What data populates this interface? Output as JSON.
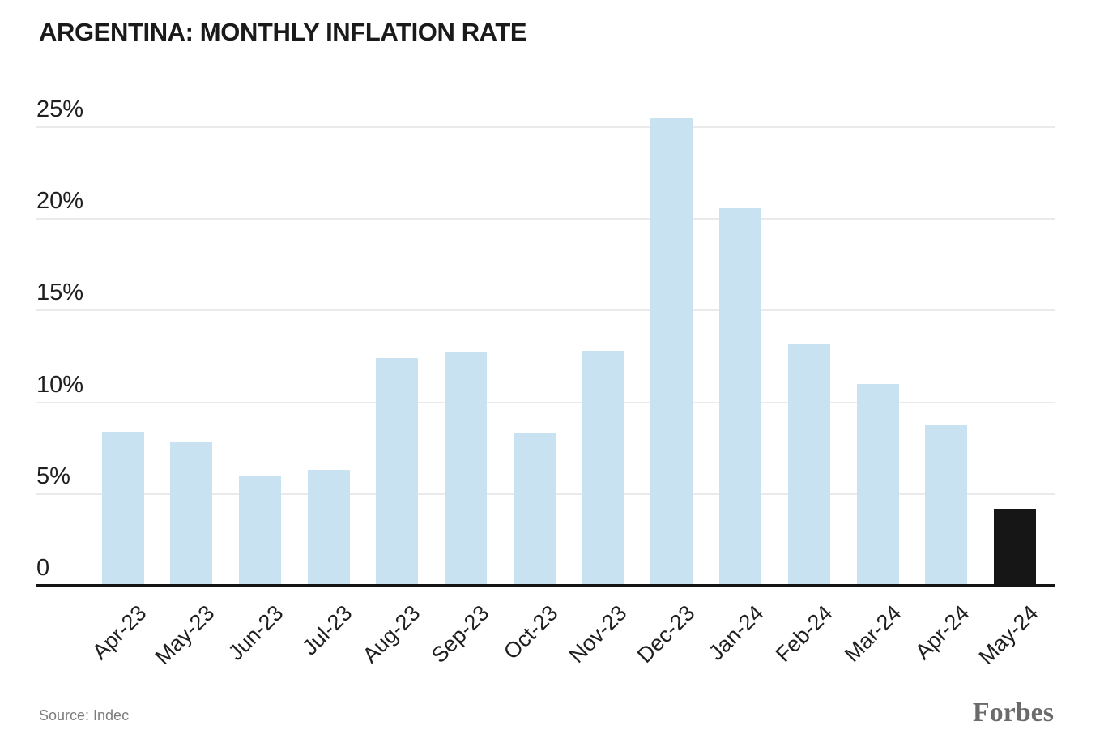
{
  "title": "ARGENTINA: MONTHLY INFLATION RATE",
  "source_note": "Source: Indec",
  "logo_text": "Forbes",
  "colors": {
    "bar": "#c9e2f2",
    "highlight_bar": "#161616",
    "grid_line": "#eaeaea",
    "axis_line": "#141414",
    "label_text": "#1f1f1f",
    "muted_text": "#7c7c7c",
    "logo_text": "#6b6b6b",
    "background": "#ffffff"
  },
  "chart_data": {
    "type": "bar",
    "title": "ARGENTINA: MONTHLY INFLATION RATE",
    "categories": [
      "Apr-23",
      "May-23",
      "Jun-23",
      "Jul-23",
      "Aug-23",
      "Sep-23",
      "Oct-23",
      "Nov-23",
      "Dec-23",
      "Jan-24",
      "Feb-24",
      "Mar-24",
      "Apr-24",
      "May-24"
    ],
    "values": [
      8.4,
      7.8,
      6.0,
      6.3,
      12.4,
      12.7,
      8.3,
      12.8,
      25.5,
      20.6,
      13.2,
      11.0,
      8.8,
      4.2
    ],
    "unit": "%",
    "bar_colors": [
      "#c9e2f2",
      "#c9e2f2",
      "#c9e2f2",
      "#c9e2f2",
      "#c9e2f2",
      "#c9e2f2",
      "#c9e2f2",
      "#c9e2f2",
      "#c9e2f2",
      "#c9e2f2",
      "#c9e2f2",
      "#c9e2f2",
      "#c9e2f2",
      "#161616"
    ],
    "highlight_index": 13,
    "ylim": [
      0,
      26.5
    ],
    "yticks": [
      {
        "value": 0,
        "label": "0"
      },
      {
        "value": 5,
        "label": "5%"
      },
      {
        "value": 10,
        "label": "10%"
      },
      {
        "value": 15,
        "label": "15%"
      },
      {
        "value": 20,
        "label": "20%"
      },
      {
        "value": 25,
        "label": "25%"
      }
    ],
    "grid": "horizontal",
    "legend": null,
    "xlabel": "",
    "ylabel": ""
  }
}
